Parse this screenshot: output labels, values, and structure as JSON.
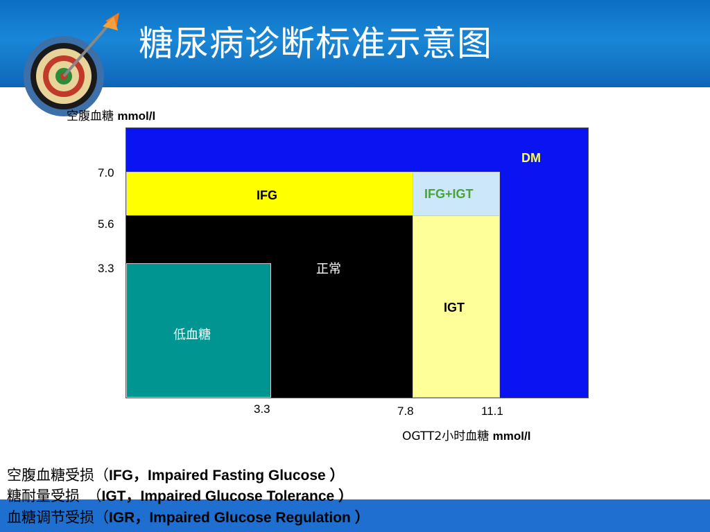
{
  "header": {
    "title": "糖尿病诊断标准示意图"
  },
  "y_axis_label": {
    "cn": "空腹血糖",
    "unit": "mmol/l"
  },
  "x_axis_label": {
    "cn": "OGTT2小时血糖",
    "unit": "mmol/l"
  },
  "y_ticks": {
    "t70": "7.0",
    "t56": "5.6",
    "t33": "3.3"
  },
  "x_ticks": {
    "t33": "3.3",
    "t78": "7.8",
    "t111": "11.1"
  },
  "regions": {
    "dm": {
      "label": "DM",
      "color": "#0a14f0"
    },
    "ifg": {
      "label": "IFG",
      "color": "#ffff00"
    },
    "ifg_igt": {
      "label": "IFG+IGT",
      "color": "#cce8f8"
    },
    "normal": {
      "label": "正常",
      "color": "#000000"
    },
    "igt": {
      "label": "IGT",
      "color": "#ffff99"
    },
    "hypo": {
      "label": "低血糖",
      "color": "#009590"
    }
  },
  "legend": [
    {
      "cn": "空腹血糖受损（",
      "en": "IFG，Impaired Fasting Glucose ）"
    },
    {
      "cn": "糖耐量受损　（",
      "en": "IGT，Impaired Glucose Tolerance ）"
    },
    {
      "cn": "血糖调节受损（",
      "en": "IGR，Impaired Glucose Regulation ）"
    }
  ]
}
